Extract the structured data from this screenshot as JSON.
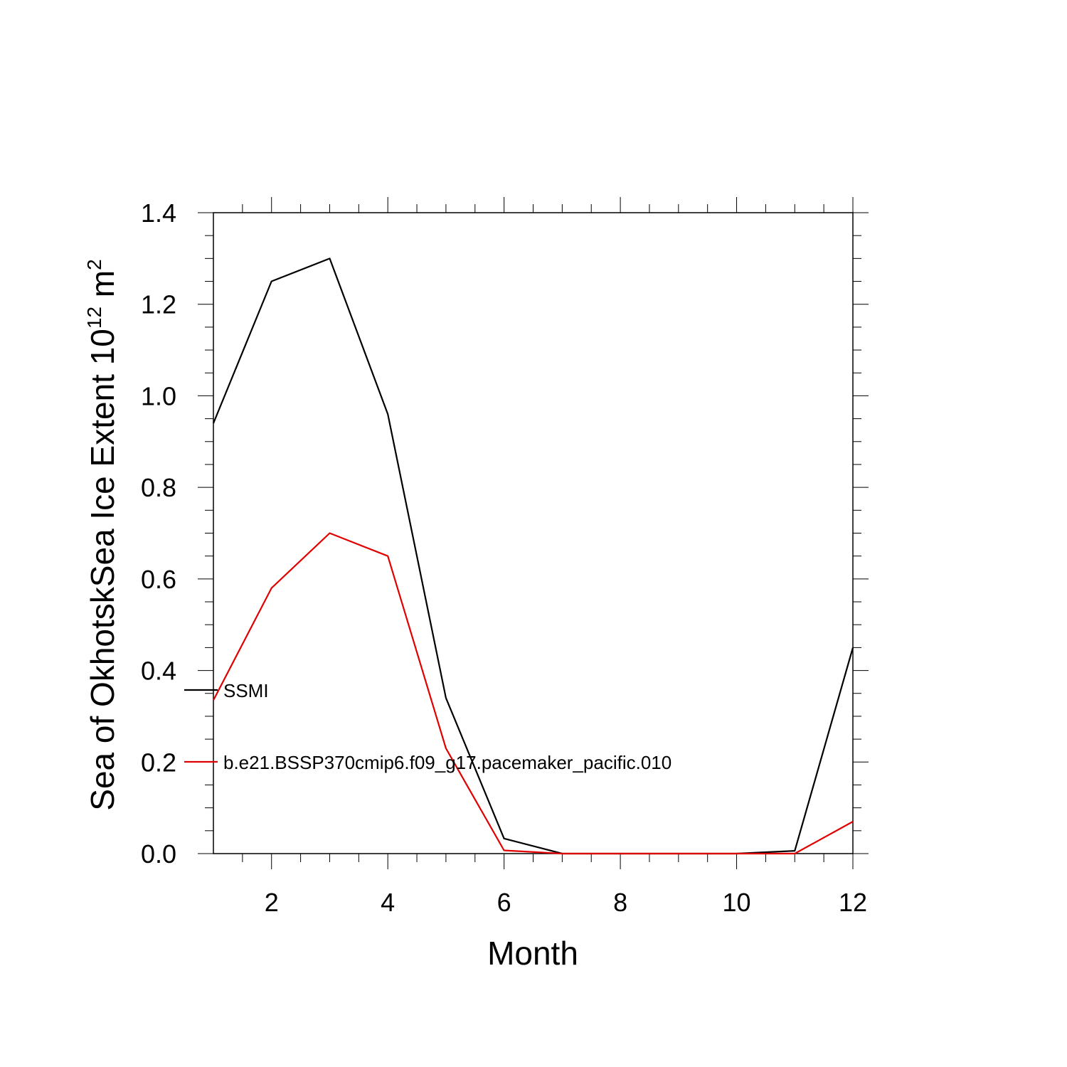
{
  "chart_data": {
    "type": "line",
    "xlabel": "Month",
    "ylabel": {
      "prefix": "Sea of OkhotskSea Ice Extent 10",
      "exponent": "12",
      "unit": " m",
      "unit_exponent": "2"
    },
    "xlim": [
      1,
      12
    ],
    "ylim": [
      0,
      1.4
    ],
    "x_ticks": [
      2,
      4,
      6,
      8,
      10,
      12
    ],
    "y_ticks": [
      "0.0",
      "0.2",
      "0.4",
      "0.6",
      "0.8",
      "1.0",
      "1.2",
      "1.4"
    ],
    "x": [
      1,
      2,
      3,
      4,
      5,
      6,
      7,
      8,
      9,
      10,
      11,
      12
    ],
    "series": [
      {
        "name": "SSMI",
        "color": "#000000",
        "values": [
          0.94,
          1.25,
          1.3,
          0.96,
          0.34,
          0.033,
          0.0,
          0.0,
          0.0,
          0.0,
          0.006,
          0.45
        ]
      },
      {
        "name": "b.e21.BSSP370cmip6.f09_g17.pacemaker_pacific.010",
        "color": "#e00000",
        "values": [
          0.335,
          0.58,
          0.7,
          0.65,
          0.23,
          0.007,
          0.0,
          0.0,
          0.0,
          0.0,
          0.0,
          0.07
        ]
      }
    ],
    "grid": false,
    "legend_placement": "left-middle"
  }
}
